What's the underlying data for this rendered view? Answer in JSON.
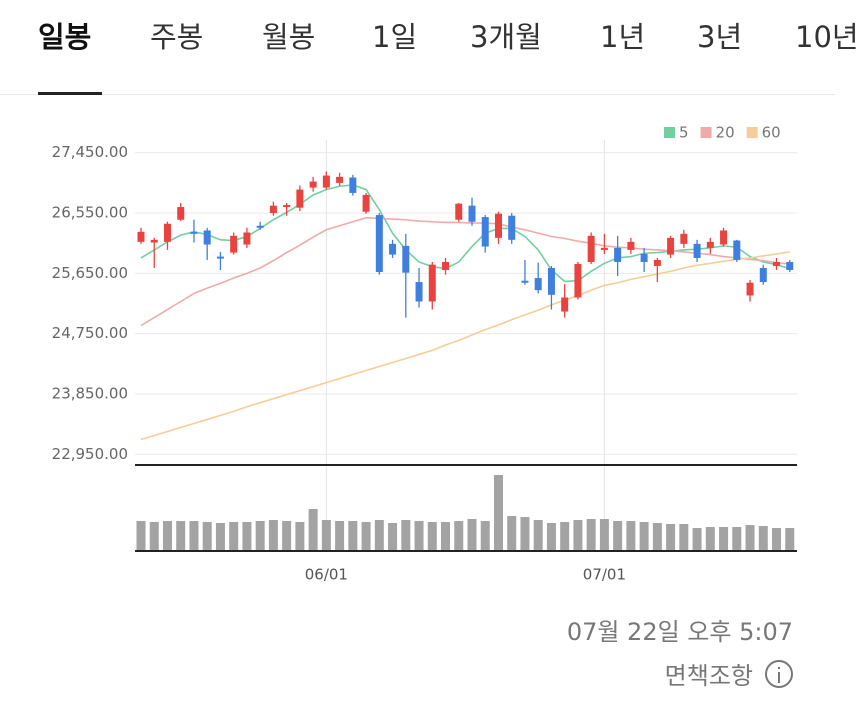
{
  "tabs": [
    "일봉",
    "주봉",
    "월봉",
    "1일",
    "3개월",
    "1년",
    "3년",
    "10년"
  ],
  "selected_tab": 0,
  "chart_data": {
    "type": "candlestick",
    "categories": [
      null,
      null,
      null,
      null,
      null,
      null,
      null,
      null,
      null,
      null,
      null,
      null,
      null,
      null,
      "06/01",
      null,
      null,
      null,
      null,
      null,
      null,
      null,
      null,
      null,
      null,
      null,
      null,
      null,
      null,
      null,
      null,
      null,
      null,
      null,
      null,
      "07/01",
      null,
      null,
      null,
      null,
      null,
      null,
      null,
      null,
      null,
      null,
      null,
      null,
      null,
      null
    ],
    "open": [
      26120,
      26110,
      26120,
      26450,
      26270,
      26290,
      25900,
      25960,
      26080,
      26360,
      26550,
      26640,
      26630,
      26930,
      26930,
      27000,
      27080,
      26570,
      26520,
      26090,
      26060,
      25520,
      25230,
      25700,
      26450,
      26660,
      26490,
      26180,
      26510,
      25540,
      25580,
      25730,
      25080,
      25290,
      25820,
      26000,
      26030,
      26000,
      25940,
      25760,
      25930,
      26090,
      26090,
      26030,
      26080,
      26140,
      25320,
      25730,
      25760,
      25820
    ],
    "high": [
      26330,
      26180,
      26420,
      26700,
      26450,
      26330,
      25970,
      26260,
      26330,
      26420,
      26720,
      26700,
      26960,
      27090,
      27170,
      27150,
      27120,
      26850,
      26550,
      26150,
      26240,
      25730,
      25820,
      25880,
      26700,
      26780,
      26520,
      26570,
      26550,
      25850,
      25810,
      25760,
      25490,
      25820,
      26260,
      26240,
      26210,
      26180,
      26030,
      25880,
      26210,
      26300,
      26150,
      26180,
      26330,
      26150,
      25550,
      25780,
      25880,
      25850
    ],
    "low": [
      26090,
      25730,
      26000,
      26430,
      26110,
      25850,
      25700,
      25930,
      26030,
      26300,
      26510,
      26510,
      26580,
      26870,
      26900,
      26960,
      26810,
      26540,
      25630,
      25880,
      24990,
      25140,
      25110,
      25630,
      26420,
      26360,
      25960,
      26090,
      26090,
      25480,
      25350,
      25110,
      24990,
      25260,
      25790,
      25940,
      25610,
      25940,
      25670,
      25520,
      25880,
      26030,
      25820,
      25940,
      26050,
      25820,
      25230,
      25480,
      25700,
      25670
    ],
    "close": [
      26270,
      26150,
      26390,
      26640,
      26240,
      26080,
      25870,
      26210,
      26260,
      26330,
      26660,
      26670,
      26900,
      27020,
      27110,
      27090,
      26850,
      26820,
      25670,
      25930,
      25660,
      25230,
      25780,
      25820,
      26690,
      26420,
      26050,
      26540,
      26150,
      25510,
      25400,
      25330,
      25290,
      25790,
      26210,
      26030,
      25820,
      26120,
      25820,
      25850,
      26180,
      26240,
      25880,
      26120,
      26290,
      25850,
      25510,
      25520,
      25820,
      25700
    ],
    "series": [
      {
        "name": "5",
        "color": "#72cfa0",
        "values": [
          25880,
          26000,
          26120,
          26220,
          26270,
          26230,
          26150,
          26140,
          26200,
          26320,
          26450,
          26560,
          26680,
          26820,
          26900,
          26950,
          26970,
          26900,
          26600,
          26250,
          26000,
          25820,
          25750,
          25720,
          25820,
          26050,
          26250,
          26320,
          26320,
          26200,
          26000,
          25700,
          25530,
          25540,
          25680,
          25800,
          25880,
          25900,
          25950,
          25960,
          25980,
          26000,
          26010,
          26030,
          26060,
          26040,
          25900,
          25820,
          25780,
          25720
        ]
      },
      {
        "name": "20",
        "color": "#f0aaaa",
        "values": [
          24870,
          24990,
          25110,
          25230,
          25350,
          25430,
          25500,
          25580,
          25650,
          25730,
          25840,
          25960,
          26070,
          26190,
          26300,
          26360,
          26420,
          26480,
          26470,
          26460,
          26450,
          26430,
          26420,
          26410,
          26410,
          26400,
          26400,
          26390,
          26340,
          26300,
          26250,
          26200,
          26170,
          26130,
          26100,
          26060,
          26040,
          26030,
          26010,
          26000,
          25990,
          25970,
          25950,
          25930,
          25900,
          25880,
          25860,
          25840,
          25810,
          25790
        ]
      },
      {
        "name": "60",
        "color": "#f6cd98",
        "values": [
          23170,
          23230,
          23290,
          23350,
          23410,
          23470,
          23530,
          23590,
          23660,
          23720,
          23780,
          23840,
          23900,
          23960,
          24020,
          24080,
          24140,
          24200,
          24260,
          24320,
          24380,
          24440,
          24500,
          24580,
          24650,
          24730,
          24810,
          24880,
          24960,
          25030,
          25100,
          25180,
          25250,
          25320,
          25400,
          25470,
          25510,
          25560,
          25600,
          25640,
          25680,
          25730,
          25770,
          25800,
          25830,
          25860,
          25880,
          25910,
          25940,
          25970
        ]
      }
    ],
    "volume": [
      29,
      28,
      29,
      29,
      29,
      28,
      27,
      28,
      28,
      29,
      30,
      29,
      28,
      41,
      30,
      29,
      29,
      28,
      30,
      27,
      30,
      29,
      28,
      28,
      29,
      31,
      29,
      75,
      34,
      33,
      30,
      27,
      28,
      30,
      31,
      31,
      29,
      29,
      28,
      27,
      26,
      26,
      22,
      23,
      23,
      23,
      25,
      24,
      22,
      22
    ],
    "ylim": [
      22820,
      27640
    ],
    "yticks": [
      {
        "value": 22950,
        "label": "22,950.00"
      },
      {
        "value": 23850,
        "label": "23,850.00"
      },
      {
        "value": 24750,
        "label": "24,750.00"
      },
      {
        "value": 25650,
        "label": "25,650.00"
      },
      {
        "value": 26550,
        "label": "26,550.00"
      },
      {
        "value": 27450,
        "label": "27,450.00"
      }
    ],
    "up_color": "#e94340",
    "down_color": "#3e7fe0",
    "volume_color": "#a3a3a3",
    "grid": true
  },
  "timestamp": "07월 22일 오후 5:07",
  "disclaimer": "면책조항"
}
